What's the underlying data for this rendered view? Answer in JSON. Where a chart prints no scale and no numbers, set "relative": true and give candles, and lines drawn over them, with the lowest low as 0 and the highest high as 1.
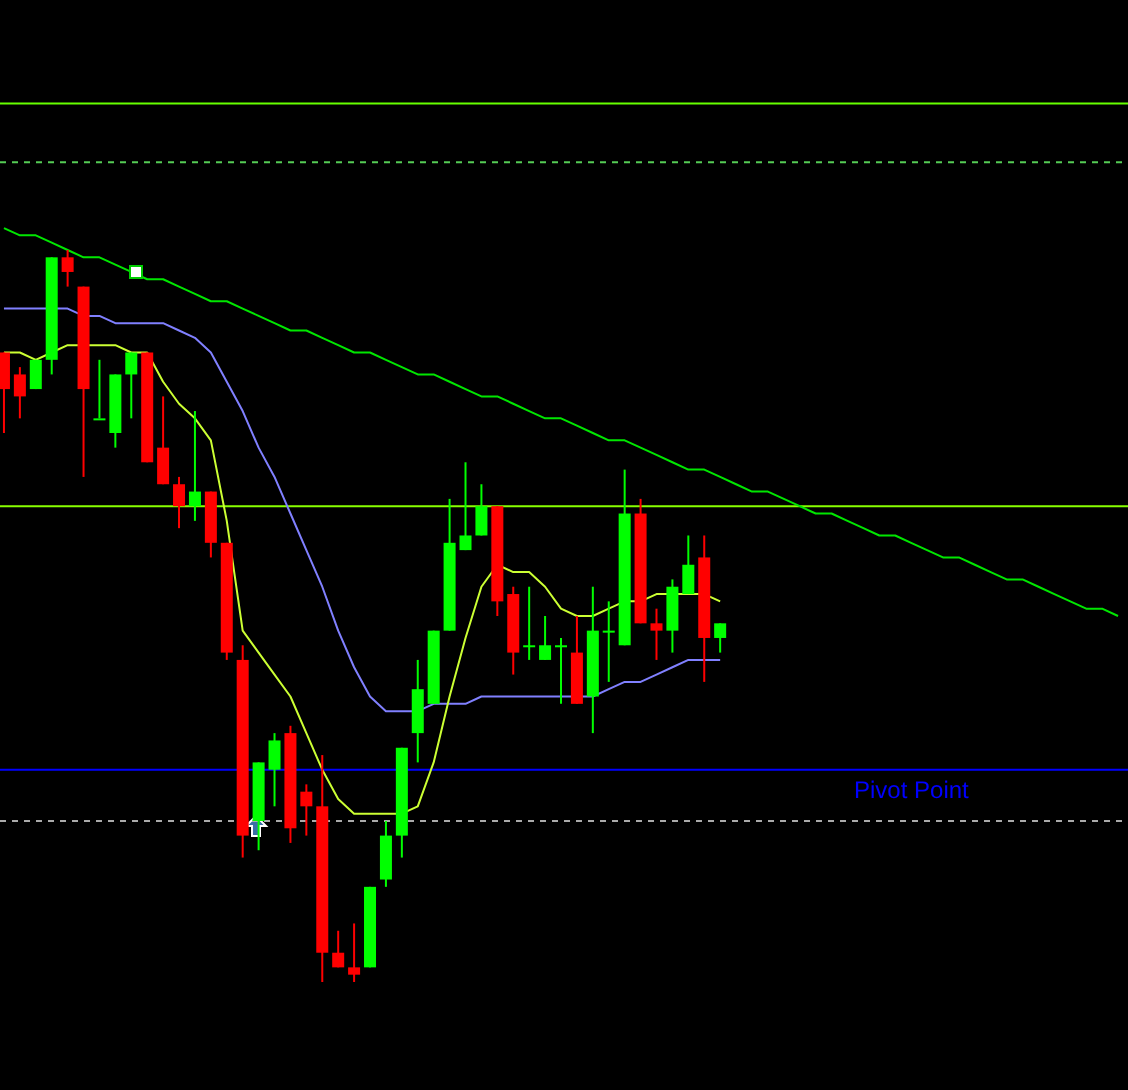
{
  "chart_data": {
    "type": "candlestick",
    "relative": true,
    "categories": [
      null,
      null,
      null,
      null,
      null,
      null,
      null,
      null,
      null,
      null,
      null,
      null,
      null,
      null,
      null,
      null,
      null,
      null,
      null,
      null,
      null,
      null,
      null,
      null,
      null,
      null,
      null,
      null,
      null,
      null,
      null,
      null,
      null,
      null,
      null,
      null,
      null,
      null,
      null,
      null,
      null,
      null,
      null,
      null,
      null,
      null,
      null,
      null,
      null,
      null,
      null,
      null,
      null,
      null,
      null,
      null,
      null,
      null,
      null,
      null,
      null,
      null,
      null,
      null,
      null,
      null,
      null,
      null,
      null,
      null,
      null
    ],
    "ohlc": [
      [
        0.86,
        0.86,
        0.75,
        0.81
      ],
      [
        0.83,
        0.84,
        0.77,
        0.8
      ],
      [
        0.81,
        0.85,
        0.81,
        0.85
      ],
      [
        0.85,
        0.99,
        0.83,
        0.99
      ],
      [
        0.99,
        1,
        0.95,
        0.97
      ],
      [
        0.95,
        0.95,
        0.69,
        0.81
      ],
      [
        0.77,
        0.85,
        0.77,
        0.77
      ],
      [
        0.75,
        0.83,
        0.73,
        0.83
      ],
      [
        0.83,
        0.86,
        0.77,
        0.86
      ],
      [
        0.86,
        0.86,
        0.71,
        0.71
      ],
      [
        0.73,
        0.8,
        0.68,
        0.68
      ],
      [
        0.68,
        0.69,
        0.62,
        0.65
      ],
      [
        0.65,
        0.78,
        0.63,
        0.67
      ],
      [
        0.67,
        0.67,
        0.58,
        0.6
      ],
      [
        0.6,
        0.6,
        0.44,
        0.45
      ],
      [
        0.44,
        0.46,
        0.17,
        0.2
      ],
      [
        0.22,
        0.3,
        0.18,
        0.3
      ],
      [
        0.29,
        0.34,
        0.24,
        0.33
      ],
      [
        0.34,
        0.35,
        0.19,
        0.21
      ],
      [
        0.26,
        0.27,
        0.2,
        0.24
      ],
      [
        0.24,
        0.31,
        0,
        0.04
      ],
      [
        0.04,
        0.07,
        0.02,
        0.02
      ],
      [
        0.02,
        0.08,
        0,
        0.01
      ],
      [
        0.02,
        0.13,
        0.02,
        0.13
      ],
      [
        0.14,
        0.22,
        0.13,
        0.2
      ],
      [
        0.2,
        0.32,
        0.17,
        0.32
      ],
      [
        0.34,
        0.44,
        0.3,
        0.4
      ],
      [
        0.38,
        0.48,
        0.38,
        0.48
      ],
      [
        0.48,
        0.66,
        0.48,
        0.6
      ],
      [
        0.59,
        0.71,
        0.59,
        0.61
      ],
      [
        0.61,
        0.68,
        0.61,
        0.65
      ],
      [
        0.65,
        0.65,
        0.5,
        0.52
      ],
      [
        0.53,
        0.54,
        0.42,
        0.45
      ],
      [
        0.46,
        0.54,
        0.44,
        0.46
      ],
      [
        0.44,
        0.5,
        0.44,
        0.46
      ],
      [
        0.46,
        0.47,
        0.38,
        0.46
      ],
      [
        0.45,
        0.5,
        0.38,
        0.38
      ],
      [
        0.39,
        0.54,
        0.34,
        0.48
      ],
      [
        0.48,
        0.52,
        0.41,
        0.48
      ],
      [
        0.46,
        0.7,
        0.46,
        0.64
      ],
      [
        0.64,
        0.66,
        0.49,
        0.49
      ],
      [
        0.49,
        0.51,
        0.44,
        0.48
      ],
      [
        0.48,
        0.55,
        0.45,
        0.54
      ],
      [
        0.53,
        0.61,
        0.53,
        0.57
      ],
      [
        0.58,
        0.61,
        0.41,
        0.47
      ],
      [
        0.47,
        0.49,
        0.45,
        0.49
      ],
      null,
      null,
      null,
      null,
      null,
      null,
      null,
      null,
      null,
      null,
      null,
      null,
      null,
      null,
      null,
      null,
      null,
      null,
      null,
      null,
      null,
      null,
      null,
      null,
      null
    ],
    "series": [
      {
        "type": "line",
        "color": "#8080ff",
        "values": [
          0.92,
          0.92,
          0.92,
          0.92,
          0.92,
          0.91,
          0.91,
          0.9,
          0.9,
          0.9,
          0.9,
          0.89,
          0.88,
          0.86,
          0.82,
          0.78,
          0.73,
          0.69,
          0.64,
          0.59,
          0.54,
          0.48,
          0.43,
          0.39,
          0.37,
          0.37,
          0.37,
          0.38,
          0.38,
          0.38,
          0.39,
          0.39,
          0.39,
          0.39,
          0.39,
          0.39,
          0.39,
          0.39,
          0.4,
          0.41,
          0.41,
          0.42,
          0.43,
          0.44,
          0.44,
          0.44,
          null,
          null,
          null,
          null,
          null,
          null,
          null,
          null,
          null,
          null,
          null,
          null,
          null,
          null,
          null,
          null,
          null,
          null,
          null,
          null,
          null,
          null,
          null,
          null,
          null
        ]
      },
      {
        "type": "line",
        "color": "#ccff33",
        "values": [
          0.86,
          0.86,
          0.85,
          0.86,
          0.87,
          0.87,
          0.87,
          0.87,
          0.86,
          0.86,
          0.82,
          0.79,
          0.77,
          0.74,
          0.63,
          0.48,
          0.45,
          0.42,
          0.39,
          0.34,
          0.29,
          0.25,
          0.23,
          0.23,
          0.23,
          0.23,
          0.24,
          0.3,
          0.39,
          0.47,
          0.54,
          0.57,
          0.56,
          0.56,
          0.54,
          0.51,
          0.5,
          0.5,
          0.51,
          0.52,
          0.52,
          0.53,
          0.53,
          0.53,
          0.53,
          0.52,
          null,
          null,
          null,
          null,
          null,
          null,
          null,
          null,
          null,
          null,
          null,
          null,
          null,
          null,
          null,
          null,
          null,
          null,
          null,
          null,
          null,
          null,
          null,
          null,
          null
        ]
      },
      {
        "type": "line",
        "color": "#00e600",
        "values": [
          1.03,
          1.02,
          1.02,
          1.01,
          1.0,
          0.99,
          0.99,
          0.98,
          0.97,
          0.96,
          0.96,
          0.95,
          0.94,
          0.93,
          0.93,
          0.92,
          0.91,
          0.9,
          0.89,
          0.89,
          0.88,
          0.87,
          0.86,
          0.86,
          0.85,
          0.84,
          0.83,
          0.83,
          0.82,
          0.81,
          0.8,
          0.8,
          0.79,
          0.78,
          0.77,
          0.77,
          0.76,
          0.75,
          0.74,
          0.74,
          0.73,
          0.72,
          0.71,
          0.7,
          0.7,
          0.69,
          0.68,
          0.67,
          0.67,
          0.66,
          0.65,
          0.64,
          0.64,
          0.63,
          0.62,
          0.61,
          0.61,
          0.6,
          0.59,
          0.58,
          0.58,
          0.57,
          0.56,
          0.55,
          0.55,
          0.54,
          0.53,
          0.52,
          0.51,
          0.51,
          0.5
        ]
      }
    ],
    "ref_lines": [
      {
        "axis": "y",
        "value": 1.2,
        "color": "#66ff00",
        "line_style": "solid"
      },
      {
        "axis": "y",
        "value": 1.12,
        "color": "#55cc55",
        "line_style": "dashed"
      },
      {
        "axis": "y",
        "value": 0.65,
        "color": "#88ff00",
        "line_style": "solid"
      },
      {
        "axis": "y",
        "value": 0.29,
        "color": "#0000ff",
        "line_style": "solid",
        "label": "Pivot Point"
      },
      {
        "axis": "y",
        "value": 0.22,
        "color": "#aaaaaa",
        "line_style": "dashed"
      }
    ]
  }
}
